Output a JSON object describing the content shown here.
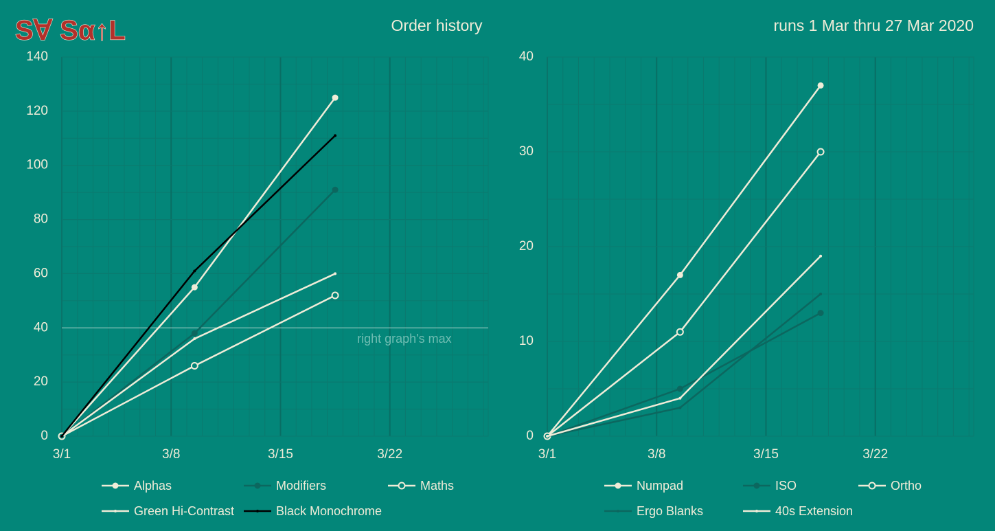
{
  "logo": "S∀ Sα↑L",
  "title": "Order history",
  "subtitle": "runs 1 Mar thru 27 Mar 2020",
  "chart_data": [
    {
      "type": "line",
      "xlim": [
        1,
        28.3
      ],
      "xticks": [
        {
          "value": 1,
          "label": "3/1"
        },
        {
          "value": 8,
          "label": "3/8"
        },
        {
          "value": 15,
          "label": "3/15"
        },
        {
          "value": 22,
          "label": "3/22"
        }
      ],
      "ylim": [
        0,
        140
      ],
      "yticks": [
        0,
        20,
        40,
        60,
        80,
        100,
        120,
        140
      ],
      "grid": true,
      "minor_grid": true,
      "x": [
        1,
        9.5,
        18.5
      ],
      "annotation": {
        "text": "right graph's max",
        "y": 40
      },
      "series": [
        {
          "name": "Alphas",
          "color": "#f0ecd8",
          "marker": "filled",
          "values": [
            0,
            55,
            125
          ]
        },
        {
          "name": "Modifiers",
          "color": "#0c675f",
          "marker": "filled",
          "values": [
            0,
            38,
            91
          ]
        },
        {
          "name": "Maths",
          "color": "#f0ecd8",
          "marker": "open",
          "values": [
            0,
            26,
            52
          ]
        },
        {
          "name": "Green Hi-Contrast",
          "color": "#f0ecd8",
          "marker": "dot",
          "values": [
            0,
            36,
            60
          ]
        },
        {
          "name": "Black Monochrome",
          "color": "#000000",
          "marker": "dot",
          "values": [
            0,
            61,
            111
          ]
        }
      ]
    },
    {
      "type": "line",
      "xlim": [
        1,
        28.3
      ],
      "xticks": [
        {
          "value": 1,
          "label": "3/1"
        },
        {
          "value": 8,
          "label": "3/8"
        },
        {
          "value": 15,
          "label": "3/15"
        },
        {
          "value": 22,
          "label": "3/22"
        }
      ],
      "ylim": [
        0,
        40
      ],
      "yticks": [
        0,
        10,
        20,
        30,
        40
      ],
      "grid": true,
      "minor_grid": true,
      "x": [
        1,
        9.5,
        18.5
      ],
      "series": [
        {
          "name": "Numpad",
          "color": "#f0ecd8",
          "marker": "filled",
          "values": [
            0,
            17,
            37
          ]
        },
        {
          "name": "ISO",
          "color": "#0c675f",
          "marker": "filled",
          "values": [
            0,
            5,
            13
          ]
        },
        {
          "name": "Ortho",
          "color": "#f0ecd8",
          "marker": "open",
          "values": [
            0,
            11,
            30
          ]
        },
        {
          "name": "Ergo Blanks",
          "color": "#0c675f",
          "marker": "dot",
          "values": [
            0,
            3,
            15
          ]
        },
        {
          "name": "40s Extension",
          "color": "#f0ecd8",
          "marker": "dot",
          "values": [
            0,
            4,
            19
          ]
        }
      ]
    }
  ]
}
